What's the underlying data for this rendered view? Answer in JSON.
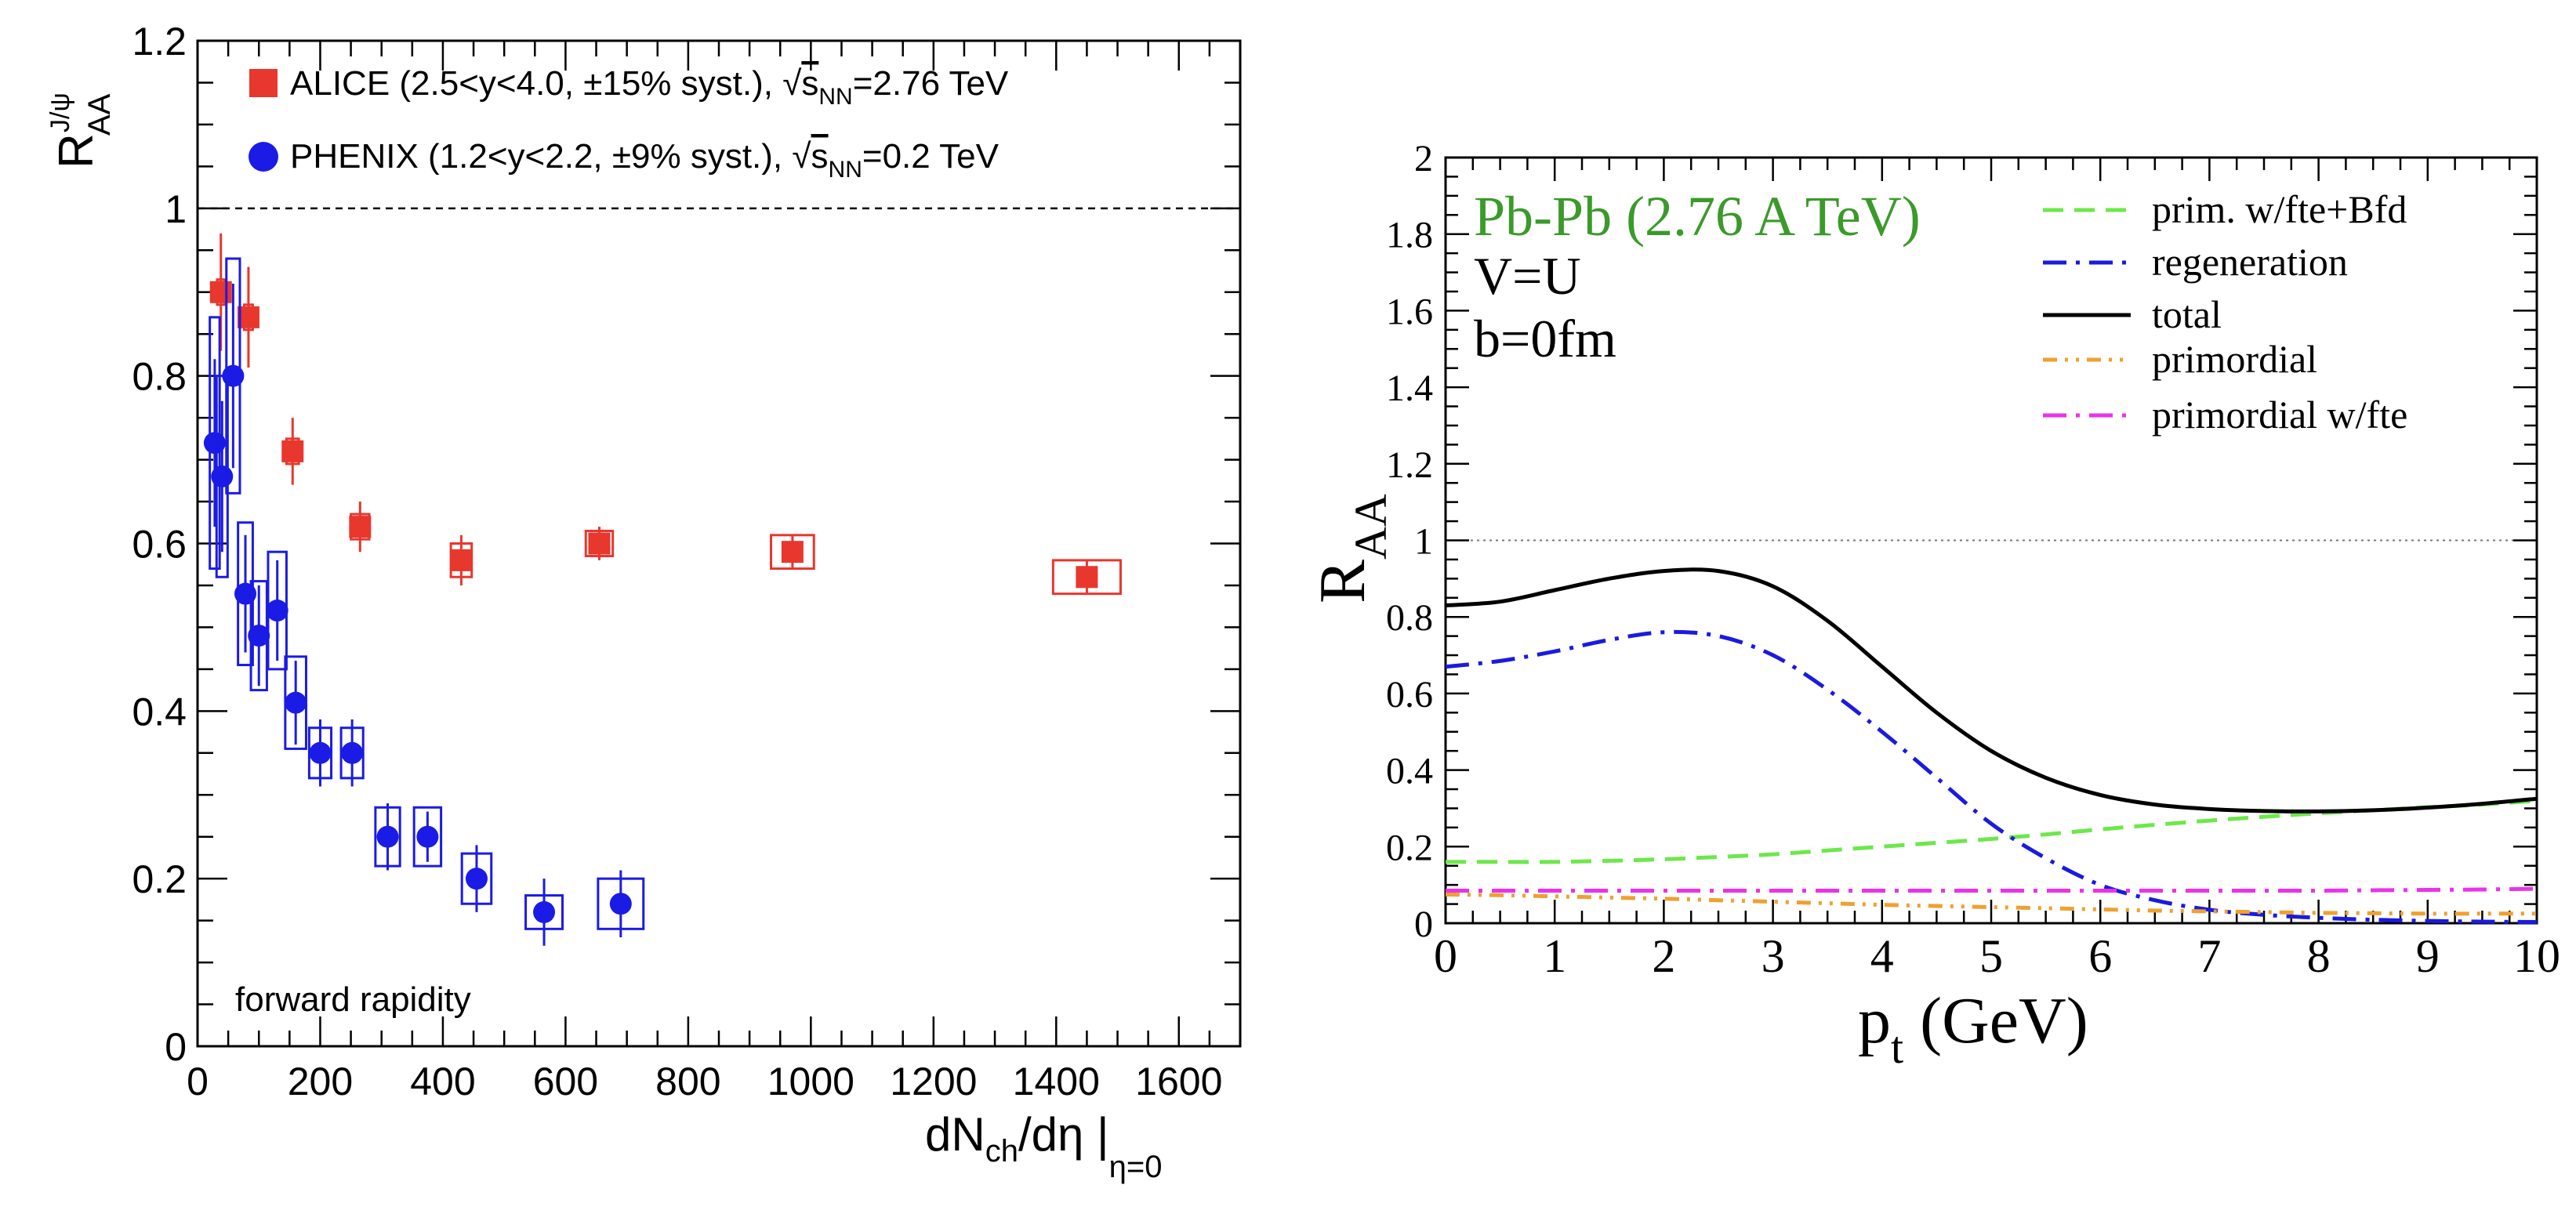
{
  "chart_data": [
    {
      "type": "scatter",
      "ylabel": "R",
      "ylabel_sub": "AA",
      "ylabel_sup": "J/ψ",
      "xlabel_parts": [
        "dN",
        "ch",
        "/dη |",
        "η=0"
      ],
      "xlim": [
        0,
        1700
      ],
      "ylim": [
        0,
        1.2
      ],
      "x_ticks": [
        "0",
        "200",
        "400",
        "600",
        "800",
        "1000",
        "1200",
        "1400",
        "1600"
      ],
      "y_ticks": [
        "0",
        "0.2",
        "0.4",
        "0.6",
        "0.8",
        "1",
        "1.2"
      ],
      "reference_line": 1,
      "annotation": "forward rapidity",
      "series": [
        {
          "name": "ALICE",
          "color": "#e8372d",
          "marker": "square",
          "legend_parts": [
            "ALICE (2.5<y<4.0, ±15% syst.), ",
            "√",
            "s",
            "NN",
            "=2.76 TeV"
          ],
          "x": [
            38,
            83,
            155,
            265,
            430,
            655,
            970,
            1450
          ],
          "y": [
            0.9,
            0.87,
            0.71,
            0.62,
            0.58,
            0.6,
            0.59,
            0.56
          ],
          "err": [
            0.07,
            0.06,
            0.04,
            0.03,
            0.03,
            0.02,
            0.02,
            0.02
          ],
          "sys_w": [
            12,
            14,
            20,
            30,
            34,
            44,
            70,
            110
          ],
          "sys_h": [
            0.03,
            0.03,
            0.03,
            0.03,
            0.04,
            0.03,
            0.04,
            0.04
          ]
        },
        {
          "name": "PHENIX",
          "color": "#1b1be6",
          "marker": "circle",
          "legend_parts": [
            "PHENIX (1.2<y<2.2, ±9% syst.), ",
            "√",
            "s",
            "NN",
            "=0.2 TeV"
          ],
          "x": [
            28,
            40,
            58,
            78,
            100,
            130,
            160,
            200,
            252,
            310,
            375,
            455,
            565,
            690
          ],
          "y": [
            0.72,
            0.68,
            0.8,
            0.54,
            0.49,
            0.52,
            0.41,
            0.35,
            0.35,
            0.25,
            0.25,
            0.2,
            0.16,
            0.17
          ],
          "err": [
            0.1,
            0.09,
            0.11,
            0.07,
            0.06,
            0.06,
            0.05,
            0.04,
            0.04,
            0.04,
            0.03,
            0.04,
            0.04,
            0.04
          ],
          "sys_w": [
            16,
            18,
            22,
            24,
            26,
            30,
            34,
            36,
            36,
            40,
            44,
            48,
            60,
            74
          ],
          "sys_h": [
            0.3,
            0.24,
            0.28,
            0.17,
            0.13,
            0.14,
            0.11,
            0.06,
            0.06,
            0.07,
            0.07,
            0.06,
            0.04,
            0.06
          ]
        }
      ]
    },
    {
      "type": "line",
      "ylabel": "R",
      "ylabel_sub": "AA",
      "xlabel": "p",
      "xlabel_sub": "t",
      "xlabel_unit": " (GeV)",
      "xlim": [
        0,
        10
      ],
      "ylim": [
        0,
        2
      ],
      "x_ticks": [
        "0",
        "1",
        "2",
        "3",
        "4",
        "5",
        "6",
        "7",
        "8",
        "9",
        "10"
      ],
      "y_ticks": [
        "0",
        "0.2",
        "0.4",
        "0.6",
        "0.8",
        "1",
        "1.2",
        "1.4",
        "1.6",
        "1.8",
        "2"
      ],
      "reference_line": 1,
      "annotations": [
        "Pb-Pb (2.76 A TeV)",
        "V=U",
        "b=0fm"
      ],
      "annotation_color": "#3a9a2a",
      "x": [
        0,
        0.5,
        1,
        1.5,
        2,
        2.5,
        3,
        3.5,
        4,
        4.5,
        5,
        5.5,
        6,
        6.5,
        7,
        7.5,
        8,
        8.5,
        9,
        9.5,
        10
      ],
      "series": [
        {
          "name": "prim. w/fte+Bfd",
          "color": "#6ce84a",
          "dash": "long-dash",
          "values": [
            0.16,
            0.16,
            0.16,
            0.163,
            0.167,
            0.173,
            0.18,
            0.19,
            0.2,
            0.21,
            0.22,
            0.232,
            0.245,
            0.257,
            0.268,
            0.278,
            0.287,
            0.295,
            0.303,
            0.31,
            0.32
          ]
        },
        {
          "name": "regeneration",
          "color": "#1a1ae0",
          "dash": "dash-dot",
          "values": [
            0.67,
            0.685,
            0.71,
            0.74,
            0.76,
            0.75,
            0.7,
            0.61,
            0.5,
            0.38,
            0.26,
            0.17,
            0.1,
            0.06,
            0.035,
            0.022,
            0.014,
            0.009,
            0.006,
            0.004,
            0.003
          ]
        },
        {
          "name": "total",
          "color": "#000000",
          "dash": "solid",
          "values": [
            0.83,
            0.84,
            0.87,
            0.9,
            0.92,
            0.92,
            0.88,
            0.79,
            0.67,
            0.55,
            0.45,
            0.38,
            0.335,
            0.31,
            0.298,
            0.293,
            0.292,
            0.295,
            0.302,
            0.312,
            0.325
          ]
        },
        {
          "name": "primordial",
          "color": "#f0a030",
          "dash": "dash-dot-dot",
          "values": [
            0.075,
            0.073,
            0.07,
            0.067,
            0.064,
            0.06,
            0.056,
            0.052,
            0.048,
            0.045,
            0.042,
            0.039,
            0.036,
            0.033,
            0.031,
            0.029,
            0.027,
            0.026,
            0.025,
            0.025,
            0.025
          ]
        },
        {
          "name": "primordial w/fte",
          "color": "#ea32ea",
          "dash": "dash-dot",
          "values": [
            0.085,
            0.085,
            0.085,
            0.085,
            0.085,
            0.085,
            0.085,
            0.085,
            0.085,
            0.085,
            0.085,
            0.085,
            0.085,
            0.085,
            0.085,
            0.085,
            0.085,
            0.086,
            0.087,
            0.088,
            0.09
          ]
        }
      ]
    }
  ]
}
